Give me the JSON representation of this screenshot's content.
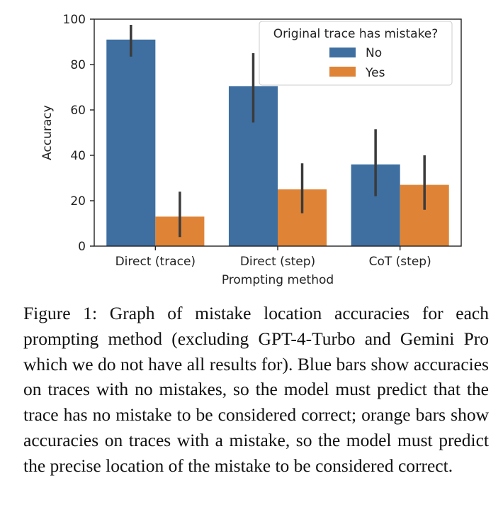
{
  "chart_data": {
    "type": "bar",
    "title": "",
    "xlabel": "Prompting method",
    "ylabel": "Accuracy",
    "ylim": [
      0,
      100
    ],
    "yticks": [
      "0",
      "20",
      "40",
      "60",
      "80",
      "100"
    ],
    "categories": [
      "Direct (trace)",
      "Direct (step)",
      "CoT (step)"
    ],
    "grid": false,
    "legend": {
      "title": "Original trace has mistake?",
      "position": "top-right"
    },
    "series": [
      {
        "name": "No",
        "color": "#3e6fa0",
        "values": [
          91,
          70.5,
          36
        ],
        "ci_low": [
          83.5,
          54.5,
          22
        ],
        "ci_high": [
          97.5,
          85,
          51.5
        ]
      },
      {
        "name": "Yes",
        "color": "#df8436",
        "values": [
          13,
          25,
          27
        ],
        "ci_low": [
          4,
          14.5,
          16
        ],
        "ci_high": [
          24,
          36.5,
          40
        ]
      }
    ],
    "errorbar_color": "#3b3b3b"
  },
  "caption": "Figure 1: Graph of mistake location accuracies for each prompting method (excluding GPT-4-Turbo and Gemini Pro which we do not have all results for). Blue bars show accuracies on traces with no mistakes, so the model must predict that the trace has no mistake to be considered correct; orange bars show accuracies on traces with a mistake, so the model must predict the precise location of the mistake to be considered correct."
}
